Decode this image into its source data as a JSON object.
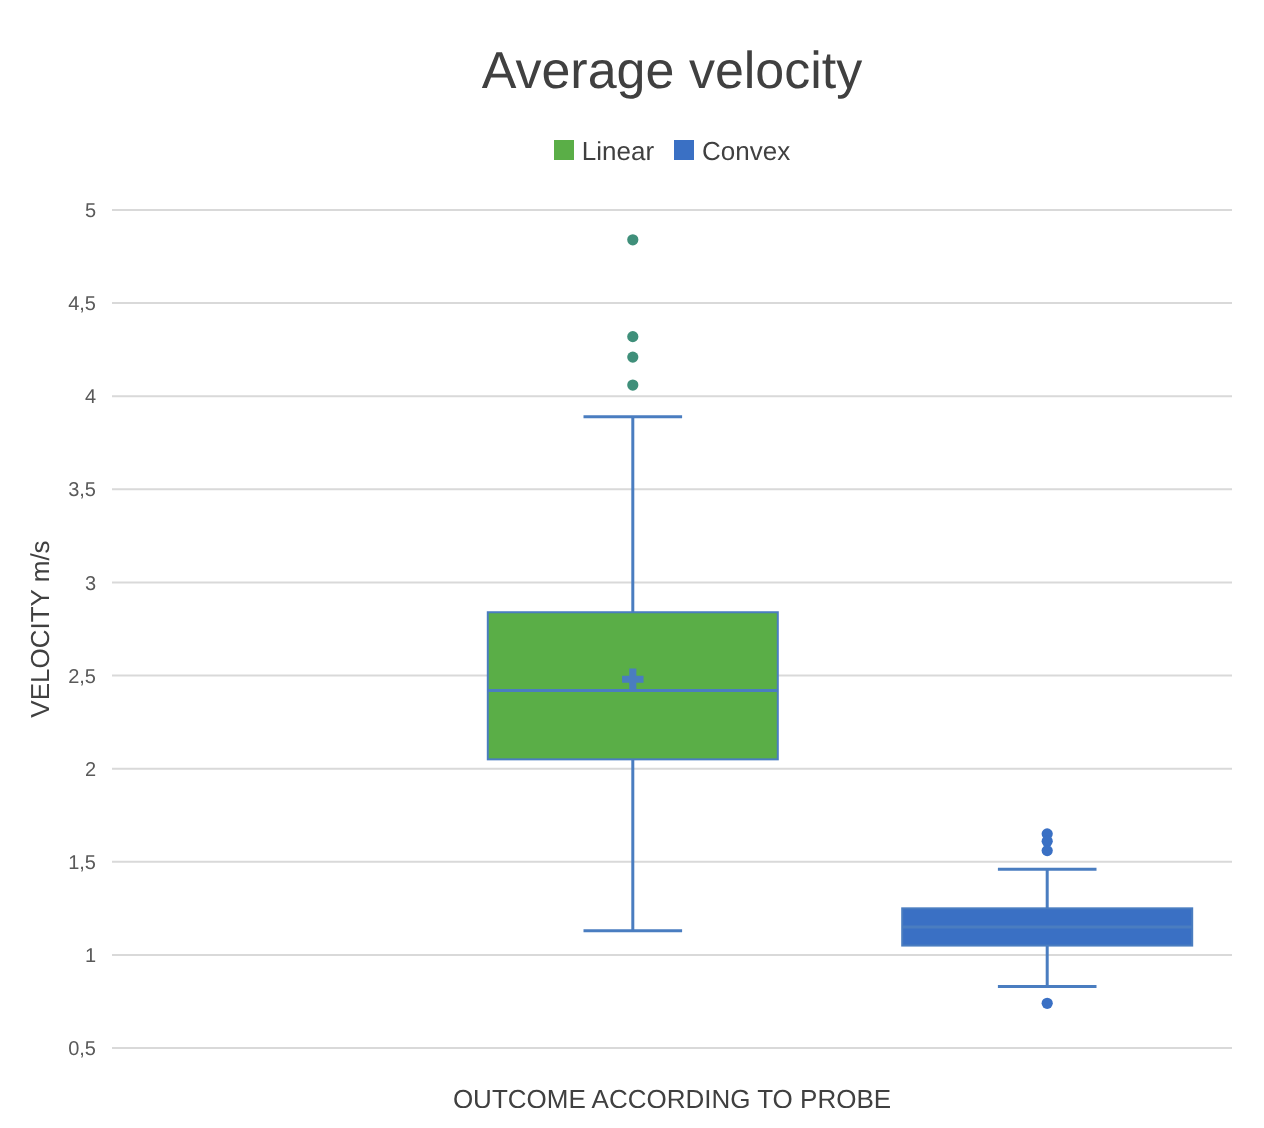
{
  "chart_data": {
    "type": "box",
    "title": "Average velocity",
    "xlabel": "OUTCOME ACCORDING TO PROBE",
    "ylabel": "VELOCITY m/s",
    "categories": [
      null
    ],
    "ylim": [
      0.5,
      5
    ],
    "yticks": [
      {
        "value": 0.5,
        "label": "0,5"
      },
      1,
      {
        "value": 1.5,
        "label": "1,5"
      },
      2,
      {
        "value": 2.5,
        "label": "2,5"
      },
      3,
      {
        "value": 3.5,
        "label": "3,5"
      },
      4,
      {
        "value": 4.5,
        "label": "4,5"
      },
      5
    ],
    "grid": "y",
    "legend": "top",
    "marker": "circle",
    "series": [
      {
        "name": "Linear",
        "color": "#5aae47",
        "boxes": [
          {
            "low": 1.13,
            "q1": 2.05,
            "median": 2.42,
            "q3": 2.84,
            "high": 3.89,
            "mean": 2.48,
            "outliers": [
              4.84,
              4.32,
              4.21,
              4.06
            ]
          }
        ]
      },
      {
        "name": "Convex",
        "color": "#3a70c4",
        "boxes": [
          {
            "low": 0.83,
            "q1": 1.05,
            "median": 1.15,
            "q3": 1.25,
            "high": 1.46,
            "outliers": [
              1.65,
              1.61,
              1.56,
              0.74
            ]
          }
        ]
      }
    ]
  }
}
